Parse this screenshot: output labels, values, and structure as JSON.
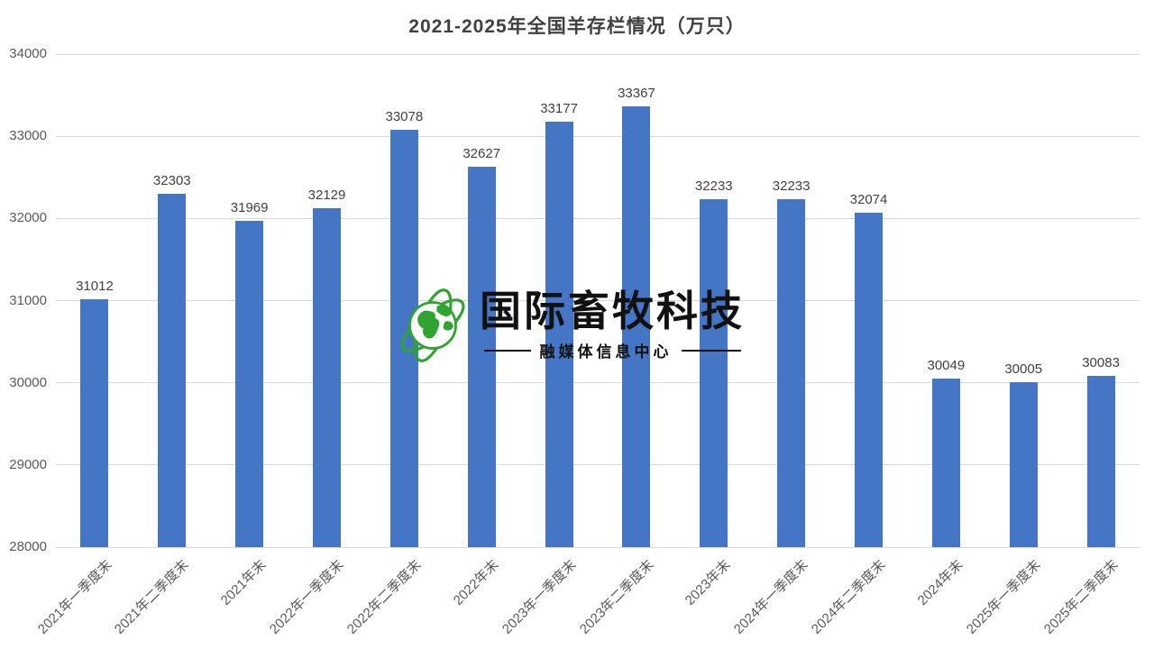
{
  "chart_data": {
    "type": "bar",
    "title": "2021-2025年全国羊存栏情况（万只）",
    "categories": [
      "2021年一季度末",
      "2021年二季度末",
      "2021年末",
      "2022年一季度末",
      "2022年二季度末",
      "2022年末",
      "2023年一季度末",
      "2023年二季度末",
      "2023年末",
      "2024年一季度末",
      "2024年二季度末",
      "2024年末",
      "2025年一季度末",
      "2025年二季度末"
    ],
    "values": [
      31012,
      32303,
      31969,
      32129,
      33078,
      32627,
      33177,
      33367,
      32233,
      32233,
      32074,
      30049,
      30005,
      30083
    ],
    "data_labels": true,
    "xlabel": "",
    "ylabel": "",
    "ylim": [
      28000,
      34000
    ],
    "yticks": [
      28000,
      29000,
      30000,
      31000,
      32000,
      33000,
      34000
    ],
    "grid": "horizontal",
    "legend": "none",
    "x_tick_rotation_deg": 45,
    "colors": {
      "bar": "#4575C5",
      "gridline": "#D9D9D9",
      "axis_tick_label": "#595959",
      "data_label": "#404040",
      "title": "#404040",
      "background": "#FFFFFF"
    }
  },
  "watermark": {
    "logo_icon": "globe-orbit-icon",
    "brand": "国际畜牧科技",
    "subtitle": "融媒体信息中心",
    "colors": {
      "logo": "#2FA430",
      "text": "#111111"
    }
  }
}
